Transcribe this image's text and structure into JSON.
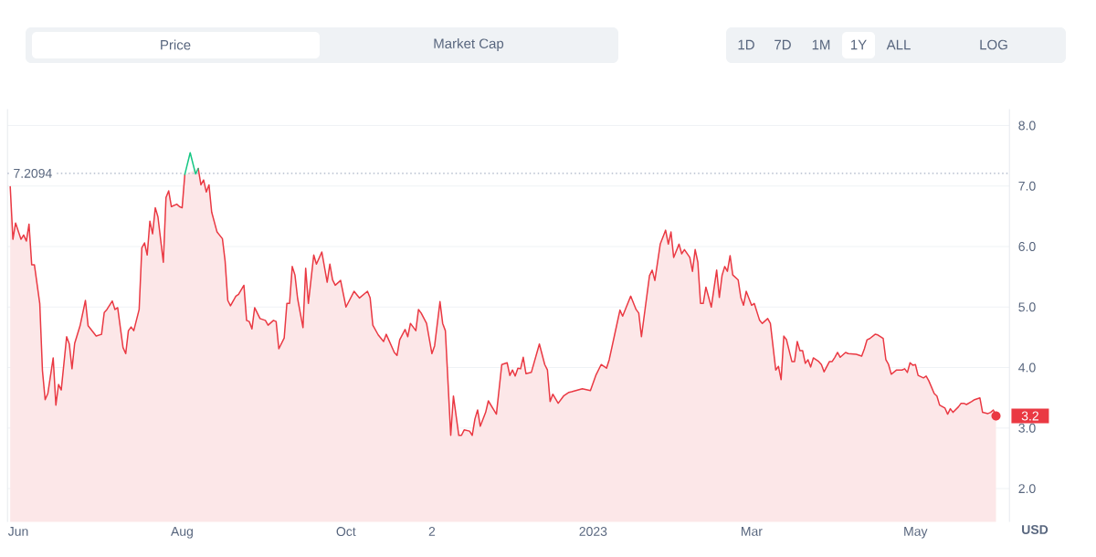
{
  "chart_data": {
    "type": "area",
    "ylabel": "USD",
    "annotations": [
      "Price",
      "Market Cap",
      "1D",
      "7D",
      "1M",
      "1Y",
      "ALL",
      "LOG",
      {
        "text": "3.2",
        "x": "2023-05-31",
        "y": 3.2
      }
    ],
    "xlim": [
      "2022-05-28",
      "2023-06-05"
    ],
    "xticks": [
      {
        "value": "2022-06-01",
        "label": "Jun"
      },
      {
        "value": "2022-08-01",
        "label": "Aug"
      },
      {
        "value": "2022-10-01",
        "label": "Oct"
      },
      {
        "value": "2022-11-02",
        "label": "2"
      },
      {
        "value": "2023-01-01",
        "label": "2023"
      },
      {
        "value": "2023-03-01",
        "label": "Mar"
      },
      {
        "value": "2023-05-01",
        "label": "May"
      }
    ],
    "ylim": [
      1.45,
      8.27
    ],
    "yticks": [
      {
        "value": 2,
        "label": "2.0"
      },
      {
        "value": 3,
        "label": "3.0"
      },
      {
        "value": 4,
        "label": "4.0"
      },
      {
        "value": 5,
        "label": "5.0"
      },
      {
        "value": 6,
        "label": "6.0"
      },
      {
        "value": 7,
        "label": "7.0"
      },
      {
        "value": 8,
        "label": "8.0"
      }
    ],
    "grid": "y",
    "ref_lines": [
      {
        "axis": "y",
        "value": 7.2094,
        "label": "7.2094",
        "color": "#a6b0c3",
        "line_style": "dotted"
      }
    ],
    "series": [
      {
        "color": "#ea3943",
        "x": [
          "2022-05-29",
          "2022-05-30",
          "2022-05-31",
          "2022-06-02",
          "2022-06-03",
          "2022-06-04",
          "2022-06-05",
          "2022-06-06",
          "2022-06-07",
          "2022-06-09",
          "2022-06-10",
          "2022-06-11",
          "2022-06-12",
          "2022-06-14",
          "2022-06-15",
          "2022-06-16",
          "2022-06-17",
          "2022-06-19",
          "2022-06-20",
          "2022-06-21",
          "2022-06-22",
          "2022-06-24",
          "2022-06-26",
          "2022-06-27",
          "2022-06-30",
          "2022-07-02",
          "2022-07-03",
          "2022-07-04",
          "2022-07-06",
          "2022-07-07",
          "2022-07-08",
          "2022-07-10",
          "2022-07-11",
          "2022-07-12",
          "2022-07-13",
          "2022-07-14",
          "2022-07-16",
          "2022-07-17",
          "2022-07-18",
          "2022-07-19",
          "2022-07-20",
          "2022-07-21",
          "2022-07-22",
          "2022-07-23",
          "2022-07-25",
          "2022-07-26",
          "2022-07-27",
          "2022-07-28",
          "2022-07-30",
          "2022-07-31",
          "2022-08-01",
          "2022-08-02",
          "2022-08-04",
          "2022-08-06",
          "2022-08-07",
          "2022-08-08",
          "2022-08-09",
          "2022-08-10",
          "2022-08-11",
          "2022-08-12",
          "2022-08-14",
          "2022-08-16",
          "2022-08-17",
          "2022-08-18",
          "2022-08-19",
          "2022-08-21",
          "2022-08-22",
          "2022-08-24",
          "2022-08-25",
          "2022-08-26",
          "2022-08-27",
          "2022-08-28",
          "2022-08-30",
          "2022-09-01",
          "2022-09-02",
          "2022-09-04",
          "2022-09-05",
          "2022-09-06",
          "2022-09-08",
          "2022-09-09",
          "2022-09-10",
          "2022-09-11",
          "2022-09-12",
          "2022-09-13",
          "2022-09-15",
          "2022-09-16",
          "2022-09-17",
          "2022-09-19",
          "2022-09-20",
          "2022-09-22",
          "2022-09-24",
          "2022-09-25",
          "2022-09-26",
          "2022-09-27",
          "2022-09-29",
          "2022-10-01",
          "2022-10-04",
          "2022-10-06",
          "2022-10-09",
          "2022-10-10",
          "2022-10-11",
          "2022-10-13",
          "2022-10-15",
          "2022-10-16",
          "2022-10-19",
          "2022-10-20",
          "2022-10-21",
          "2022-10-23",
          "2022-10-24",
          "2022-10-25",
          "2022-10-27",
          "2022-10-28",
          "2022-10-29",
          "2022-10-31",
          "2022-11-02",
          "2022-11-03",
          "2022-11-05",
          "2022-11-06",
          "2022-11-07",
          "2022-11-09",
          "2022-11-10",
          "2022-11-12",
          "2022-11-13",
          "2022-11-14",
          "2022-11-16",
          "2022-11-17",
          "2022-11-18",
          "2022-11-19",
          "2022-11-20",
          "2022-11-22",
          "2022-11-23",
          "2022-11-26",
          "2022-11-28",
          "2022-11-30",
          "2022-12-01",
          "2022-12-02",
          "2022-12-03",
          "2022-12-04",
          "2022-12-05",
          "2022-12-06",
          "2022-12-07",
          "2022-12-09",
          "2022-12-12",
          "2022-12-14",
          "2022-12-15",
          "2022-12-16",
          "2022-12-17",
          "2022-12-19",
          "2022-12-21",
          "2022-12-23",
          "2022-12-24",
          "2022-12-28",
          "2022-12-31",
          "2023-01-02",
          "2023-01-04",
          "2023-01-06",
          "2023-01-07",
          "2023-01-09",
          "2023-01-11",
          "2023-01-12",
          "2023-01-15",
          "2023-01-17",
          "2023-01-18",
          "2023-01-19",
          "2023-01-22",
          "2023-01-23",
          "2023-01-24",
          "2023-01-26",
          "2023-01-28",
          "2023-01-29",
          "2023-01-30",
          "2023-01-31",
          "2023-02-02",
          "2023-02-03",
          "2023-02-04",
          "2023-02-06",
          "2023-02-07",
          "2023-02-08",
          "2023-02-09",
          "2023-02-10",
          "2023-02-11",
          "2023-02-12",
          "2023-02-14",
          "2023-02-16",
          "2023-02-17",
          "2023-02-18",
          "2023-02-19",
          "2023-02-20",
          "2023-02-21",
          "2023-02-22",
          "2023-02-24",
          "2023-02-25",
          "2023-02-26",
          "2023-02-27",
          "2023-03-01",
          "2023-03-02",
          "2023-03-04",
          "2023-03-05",
          "2023-03-07",
          "2023-03-08",
          "2023-03-10",
          "2023-03-11",
          "2023-03-12",
          "2023-03-13",
          "2023-03-14",
          "2023-03-16",
          "2023-03-17",
          "2023-03-18",
          "2023-03-19",
          "2023-03-20",
          "2023-03-21",
          "2023-03-22",
          "2023-03-23",
          "2023-03-24",
          "2023-03-26",
          "2023-03-27",
          "2023-03-28",
          "2023-03-30",
          "2023-03-31",
          "2023-04-01",
          "2023-04-02",
          "2023-04-03",
          "2023-04-05",
          "2023-04-06",
          "2023-04-09",
          "2023-04-11",
          "2023-04-12",
          "2023-04-13",
          "2023-04-14",
          "2023-04-16",
          "2023-04-17",
          "2023-04-19",
          "2023-04-20",
          "2023-04-21",
          "2023-04-22",
          "2023-04-24",
          "2023-04-26",
          "2023-04-27",
          "2023-04-28",
          "2023-04-29",
          "2023-04-30",
          "2023-05-01",
          "2023-05-02",
          "2023-05-04",
          "2023-05-05",
          "2023-05-06",
          "2023-05-08",
          "2023-05-09",
          "2023-05-10",
          "2023-05-12",
          "2023-05-13",
          "2023-05-14",
          "2023-05-15",
          "2023-05-17",
          "2023-05-18",
          "2023-05-19",
          "2023-05-20",
          "2023-05-22",
          "2023-05-23",
          "2023-05-25",
          "2023-05-26",
          "2023-05-28",
          "2023-05-29",
          "2023-05-30",
          "2023-05-31"
        ],
        "values": [
          6.99,
          6.12,
          6.39,
          6.12,
          6.19,
          6.09,
          6.37,
          5.7,
          5.7,
          5.06,
          3.95,
          3.47,
          3.57,
          4.16,
          3.38,
          3.72,
          3.63,
          4.51,
          4.39,
          3.98,
          4.4,
          4.69,
          5.11,
          4.69,
          4.52,
          4.55,
          4.91,
          4.96,
          5.1,
          4.96,
          4.99,
          4.33,
          4.23,
          4.61,
          4.67,
          4.61,
          4.96,
          5.98,
          6.06,
          5.86,
          6.42,
          6.21,
          6.64,
          6.49,
          5.74,
          6.81,
          6.92,
          6.66,
          6.7,
          6.66,
          6.64,
          7.19,
          null,
          null,
          7.29,
          7.02,
          7.1,
          6.9,
          7.02,
          6.57,
          6.24,
          6.13,
          5.76,
          5.11,
          5.02,
          5.18,
          5.21,
          5.36,
          4.78,
          4.76,
          4.64,
          4.99,
          4.81,
          4.78,
          4.7,
          4.78,
          4.76,
          4.31,
          4.49,
          5.06,
          5.06,
          5.67,
          5.53,
          5.14,
          4.66,
          5.64,
          5.06,
          5.86,
          5.71,
          5.91,
          5.41,
          5.71,
          5.45,
          5.36,
          5.44,
          5.0,
          5.26,
          5.15,
          5.26,
          5.15,
          4.7,
          4.54,
          4.43,
          4.55,
          4.25,
          4.2,
          4.46,
          4.63,
          4.51,
          4.73,
          4.61,
          4.96,
          4.9,
          4.73,
          4.23,
          4.36,
          5.09,
          4.73,
          4.61,
          2.88,
          3.53,
          2.88,
          2.88,
          2.97,
          2.95,
          2.88,
          3.15,
          3.3,
          3.03,
          3.26,
          3.45,
          3.23,
          4.05,
          4.08,
          3.87,
          3.96,
          3.86,
          3.99,
          3.98,
          4.17,
          3.9,
          3.92,
          4.39,
          4.05,
          3.96,
          3.44,
          3.56,
          3.41,
          3.53,
          3.59,
          3.6,
          3.65,
          3.62,
          3.87,
          4.05,
          3.99,
          4.13,
          4.54,
          4.95,
          4.85,
          5.18,
          4.96,
          4.9,
          4.51,
          5.52,
          5.61,
          5.44,
          6.04,
          6.27,
          6.04,
          6.24,
          5.82,
          6.04,
          5.88,
          5.95,
          5.82,
          5.59,
          5.95,
          5.74,
          5.06,
          5.06,
          5.33,
          5.0,
          5.61,
          5.16,
          5.52,
          5.67,
          5.59,
          5.85,
          5.53,
          5.45,
          5.16,
          5.03,
          5.26,
          5.03,
          5.06,
          4.78,
          4.73,
          4.81,
          4.73,
          3.96,
          4.02,
          3.8,
          4.52,
          4.46,
          4.1,
          4.1,
          4.43,
          4.28,
          4.28,
          4.07,
          4.13,
          4.01,
          4.16,
          4.1,
          4.05,
          3.93,
          4.1,
          4.1,
          4.17,
          4.25,
          4.17,
          4.25,
          4.23,
          4.22,
          4.19,
          4.31,
          4.46,
          4.48,
          4.55,
          4.54,
          4.48,
          4.13,
          4.05,
          3.89,
          3.96,
          3.96,
          3.98,
          3.92,
          4.08,
          4.04,
          4.05,
          3.87,
          3.83,
          3.86,
          3.78,
          3.57,
          3.53,
          3.38,
          3.33,
          3.23,
          3.32,
          3.26,
          3.35,
          3.41,
          3.41,
          3.39,
          3.44,
          3.47,
          3.5,
          3.26,
          3.24,
          3.26,
          3.3,
          3.2
        ]
      },
      {
        "type": "line",
        "color": "#16c784",
        "x": [
          "2022-08-02",
          "2022-08-04",
          "2022-08-06",
          "2022-08-07"
        ],
        "values": [
          7.19,
          7.55,
          7.2,
          7.29
        ]
      }
    ]
  }
}
